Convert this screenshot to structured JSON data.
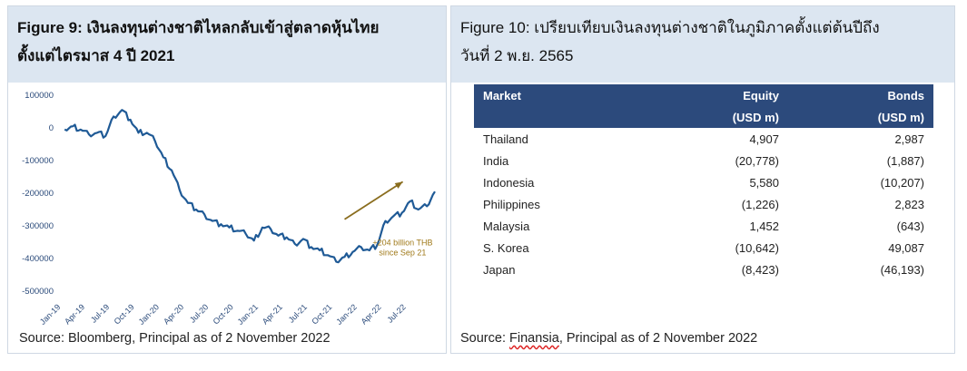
{
  "left_panel": {
    "figure_label": "Figure 9:",
    "title_rest": "เงินลงทุนต่างชาติไหลกลับเข้าสู่ตลาดหุ้นไทย",
    "title_line2": "ตั้งแต่ไตรมาส 4 ปี 2021",
    "source": "Source:  Bloomberg, Principal as of 2 November 2022"
  },
  "chart_data": {
    "type": "line",
    "title": "",
    "xlabel": "",
    "ylabel": "",
    "ylim": [
      -500000,
      100000
    ],
    "y_ticks": [
      "100000",
      "0",
      "-100000",
      "-200000",
      "-300000",
      "-400000",
      "-500000"
    ],
    "x_ticks": [
      "Jan-19",
      "Apr-19",
      "Jul-19",
      "Oct-19",
      "Jan-20",
      "Apr-20",
      "Jul-20",
      "Oct-20",
      "Jan-21",
      "Apr-21",
      "Jul-21",
      "Oct-21",
      "Jan-22",
      "Apr-22",
      "Jul-22"
    ],
    "series": [
      {
        "x": [
          "2019-01",
          "2019-02",
          "2019-03",
          "2019-04",
          "2019-05",
          "2019-06",
          "2019-07",
          "2019-08",
          "2019-09",
          "2019-10",
          "2019-11",
          "2019-12",
          "2020-01",
          "2020-02",
          "2020-03",
          "2020-04",
          "2020-05",
          "2020-06",
          "2020-07",
          "2020-08",
          "2020-09",
          "2020-10",
          "2020-11",
          "2020-12",
          "2021-01",
          "2021-02",
          "2021-03",
          "2021-04",
          "2021-05",
          "2021-06",
          "2021-07",
          "2021-08",
          "2021-09",
          "2021-10",
          "2021-11",
          "2021-12",
          "2022-01",
          "2022-02",
          "2022-03",
          "2022-04",
          "2022-05",
          "2022-06",
          "2022-07",
          "2022-08",
          "2022-09",
          "2022-10"
        ],
        "values": [
          -5000,
          5000,
          -5000,
          -20000,
          -15000,
          -25000,
          35000,
          55000,
          25000,
          -15000,
          -15000,
          -40000,
          -90000,
          -130000,
          -190000,
          -230000,
          -250000,
          -265000,
          -285000,
          -295000,
          -305000,
          -315000,
          -325000,
          -345000,
          -305000,
          -310000,
          -330000,
          -335000,
          -355000,
          -340000,
          -365000,
          -375000,
          -390000,
          -410000,
          -395000,
          -380000,
          -365000,
          -375000,
          -360000,
          -285000,
          -270000,
          -260000,
          -225000,
          -250000,
          -240000,
          -195000
        ]
      }
    ],
    "annotation": [
      "+204 billion THB",
      "since Sep 21"
    ],
    "colors": {
      "line": "#1f5a96",
      "arrow": "#8a6d1e",
      "annotation": "#a07a1a",
      "tick": "#2a4a7a"
    }
  },
  "right_panel": {
    "title_line1": "Figure 10: เปรียบเทียบเงินลงทุนต่างชาติในภูมิภาคตั้งแต่ต้นปีถึง",
    "title_line2": "วันที่ 2 พ.ย. 2565",
    "table": {
      "headers": [
        [
          "Market",
          "Equity",
          "Bonds"
        ],
        [
          "",
          "(USD m)",
          "(USD m)"
        ]
      ],
      "rows": [
        [
          "Thailand",
          "4,907",
          "2,987"
        ],
        [
          "India",
          "(20,778)",
          "(1,887)"
        ],
        [
          "Indonesia",
          "5,580",
          "(10,207)"
        ],
        [
          "Philippines",
          "(1,226)",
          "2,823"
        ],
        [
          "Malaysia",
          "1,452",
          "(643)"
        ],
        [
          "S. Korea",
          "(10,642)",
          "49,087"
        ],
        [
          "Japan",
          "(8,423)",
          "(46,193)"
        ]
      ]
    },
    "source_prefix": "Source: ",
    "source_name": "Finansia",
    "source_rest": ", Principal as of 2 November 2022"
  },
  "colors": {
    "header_bg": "#dce6f1",
    "table_header_bg": "#2c4a7c"
  }
}
